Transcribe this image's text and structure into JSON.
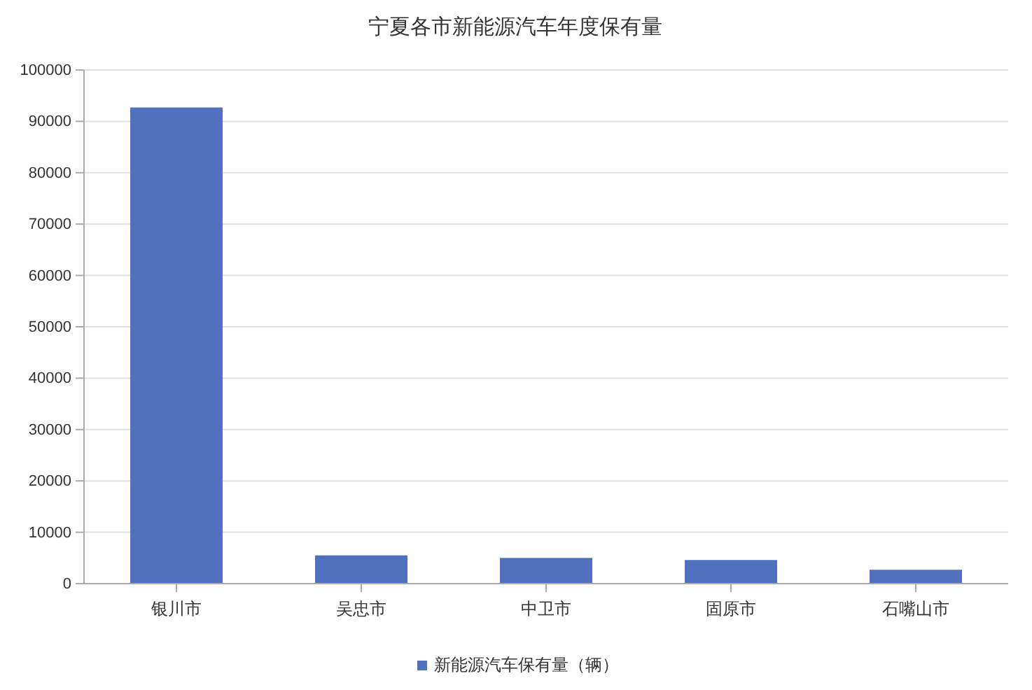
{
  "chart_data": {
    "type": "bar",
    "title": "宁夏各市新能源汽车年度保有量",
    "categories": [
      "银川市",
      "吴忠市",
      "中卫市",
      "固原市",
      "石嘴山市"
    ],
    "series": [
      {
        "name": "新能源汽车保有量（辆）",
        "color": "#4f71be",
        "values": [
          92700,
          5500,
          5000,
          4600,
          2700
        ]
      }
    ],
    "ylim": [
      0,
      100000
    ],
    "yticks": [
      0,
      10000,
      20000,
      30000,
      40000,
      50000,
      60000,
      70000,
      80000,
      90000,
      100000
    ],
    "grid": "y",
    "legend": "bottom"
  }
}
